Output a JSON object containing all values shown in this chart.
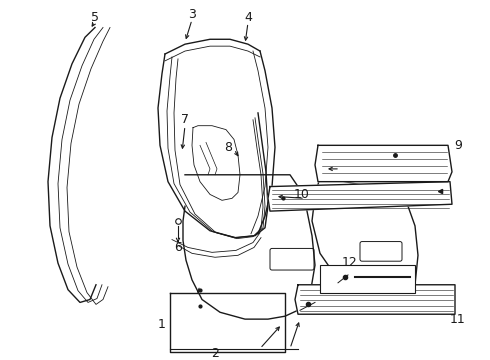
{
  "bg_color": "#ffffff",
  "line_color": "#1a1a1a",
  "figsize": [
    4.9,
    3.6
  ],
  "dpi": 100,
  "xlim": [
    0,
    490
  ],
  "ylim": [
    0,
    360
  ]
}
